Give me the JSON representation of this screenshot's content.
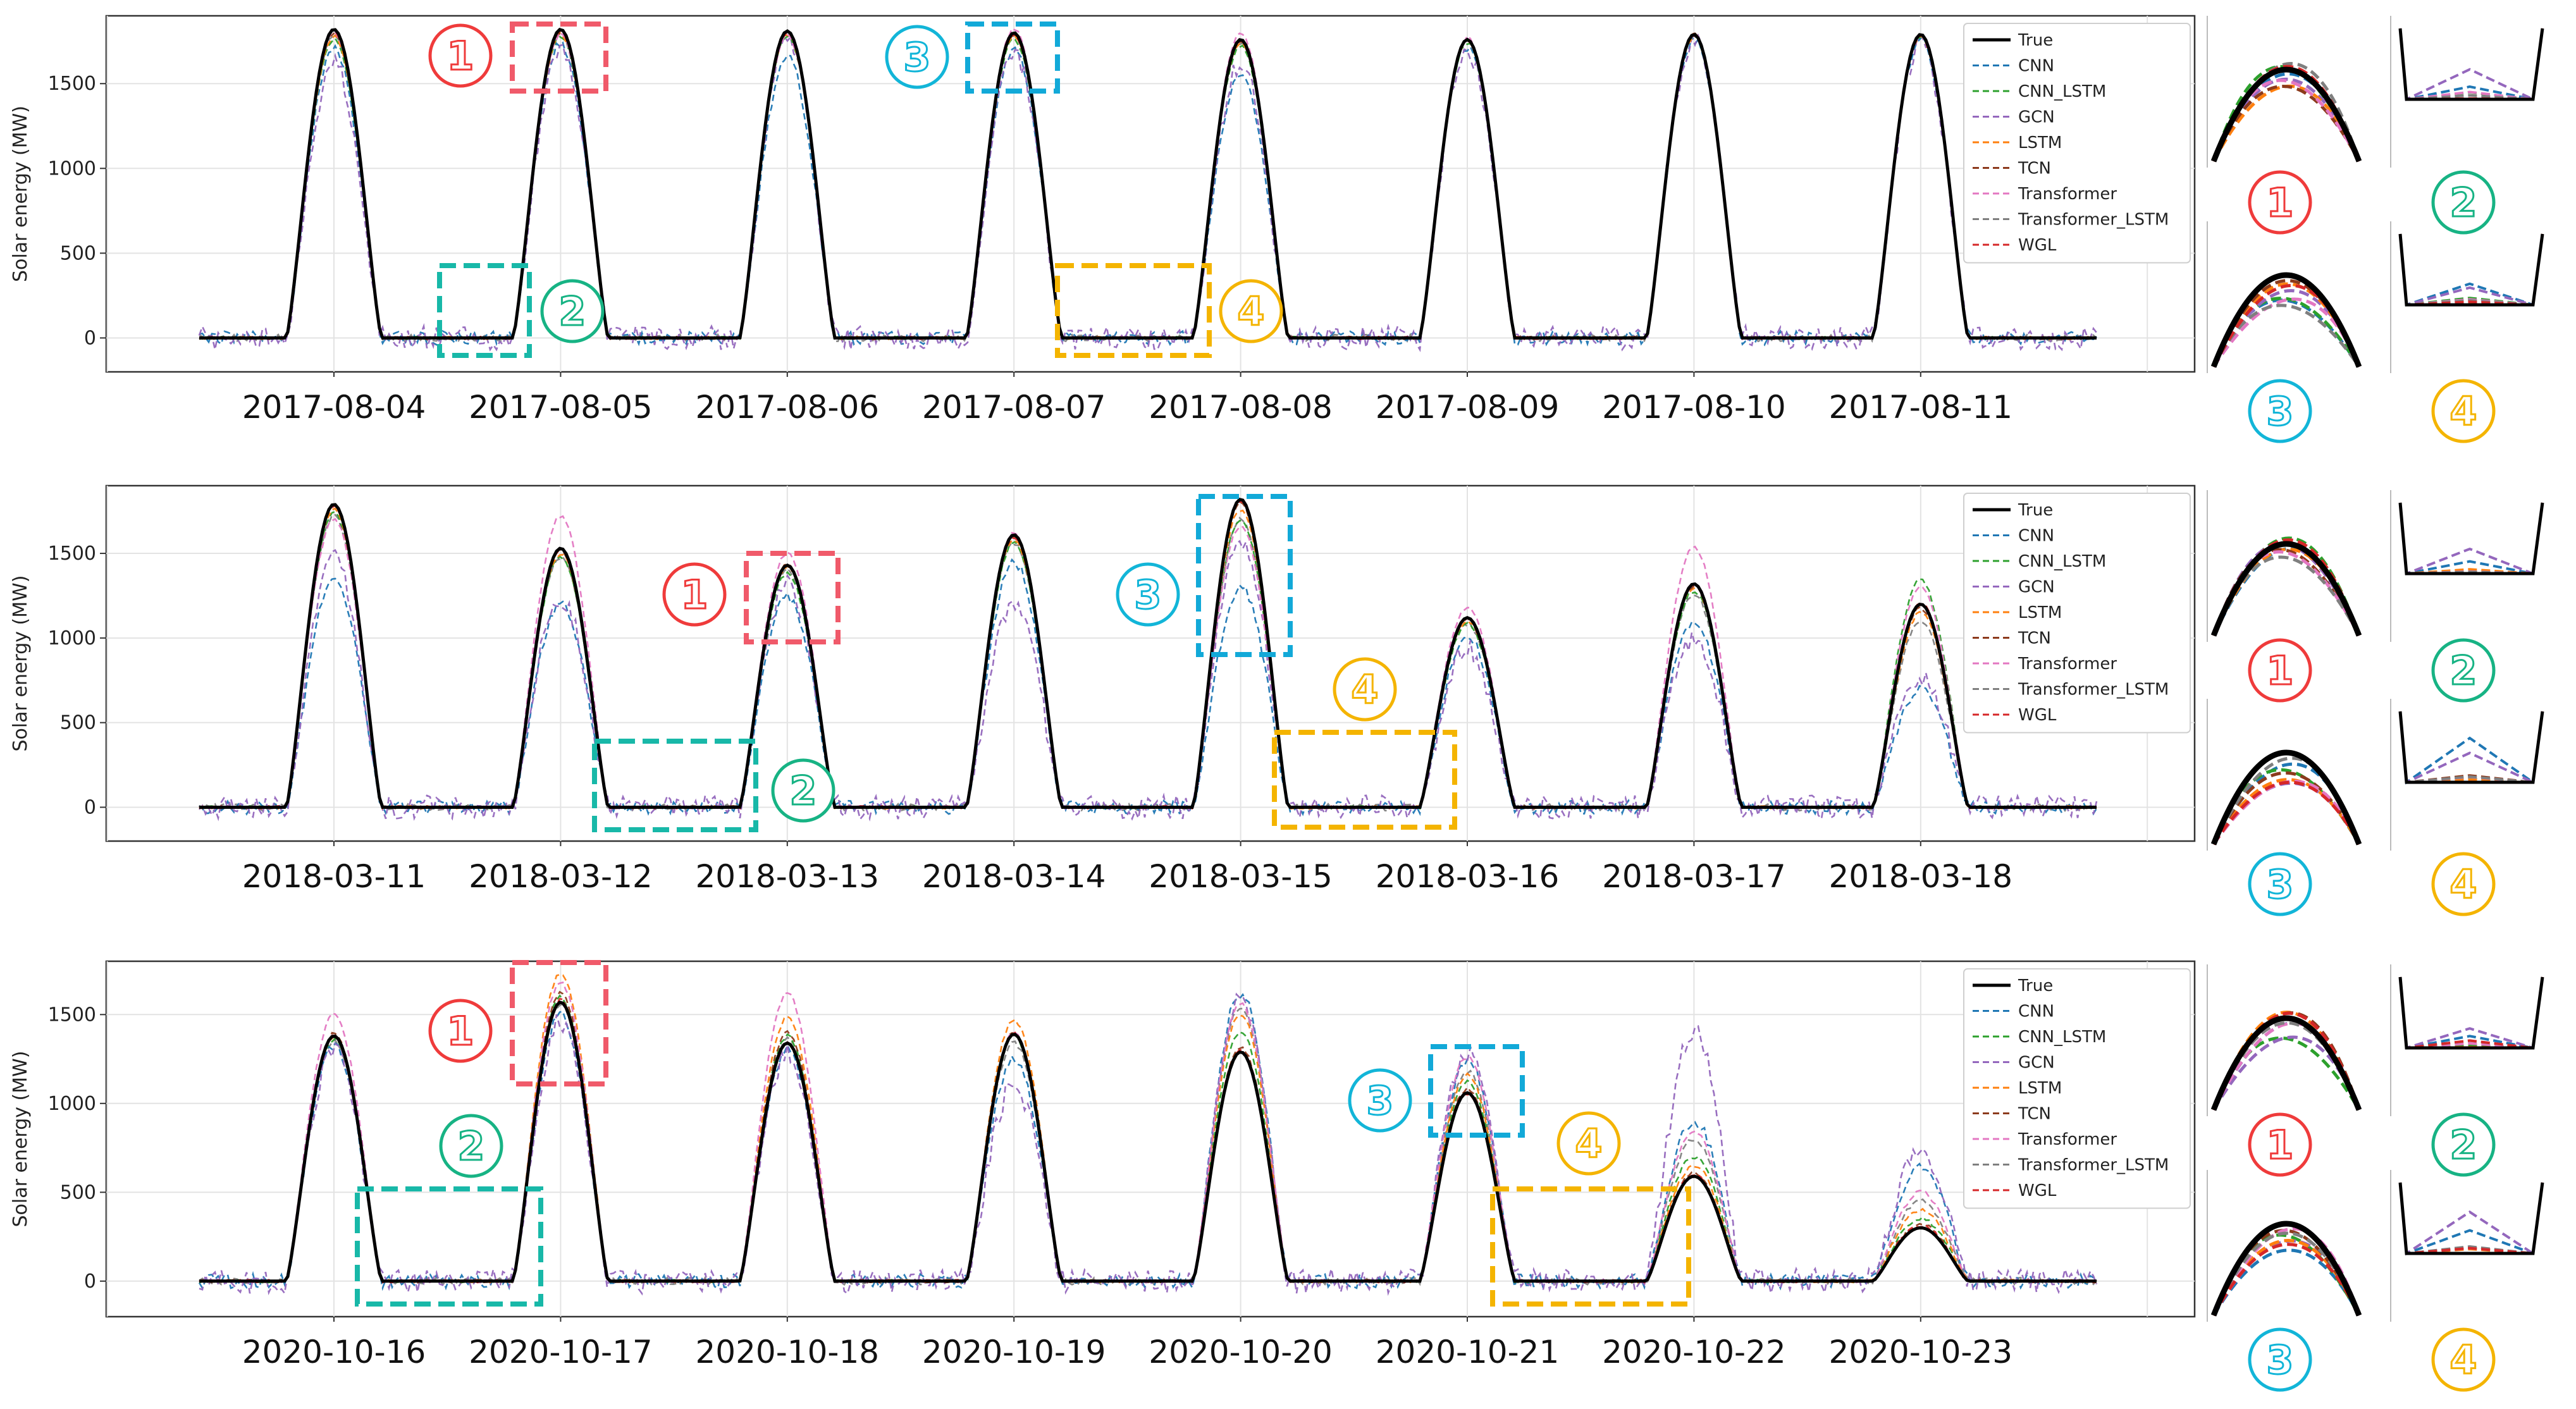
{
  "figure": {
    "ylabel": "Solar energy (MW)",
    "legend": [
      "True",
      "CNN",
      "CNN_LSTM",
      "GCN",
      "LSTM",
      "TCN",
      "Transformer",
      "Transformer_LSTM",
      "WGL"
    ],
    "colors": {
      "True": "#000000",
      "CNN": "#1f77b4",
      "CNN_LSTM": "#2ca02c",
      "GCN": "#9467bd",
      "LSTM": "#ff7f0e",
      "TCN": "#8c3a1c",
      "Transformer": "#e377c2",
      "Transformer_LSTM": "#7f7f7f",
      "WGL": "#d62728"
    },
    "marker_colors": {
      "1": "#ef3b3b",
      "2": "#17b384",
      "3": "#12b5d8",
      "4": "#f4b400"
    },
    "box_colors": {
      "1": "#f05a6a",
      "2": "#18b8a8",
      "3": "#12a9d8",
      "4": "#f4b400"
    },
    "marker_labels": [
      "1",
      "2",
      "3",
      "4"
    ]
  },
  "chart_data": [
    {
      "type": "line",
      "dates": [
        "2017-08-04",
        "2017-08-05",
        "2017-08-06",
        "2017-08-07",
        "2017-08-08",
        "2017-08-09",
        "2017-08-10",
        "2017-08-11"
      ],
      "yticks": [
        0,
        500,
        1000,
        1500
      ],
      "ylim": [
        -200,
        1900
      ],
      "ylabel": "Solar energy (MW)",
      "true_peaks": [
        1820,
        1820,
        1810,
        1800,
        1760,
        1760,
        1790,
        1790
      ],
      "model_peaks": {
        "CNN": [
          1700,
          1730,
          1650,
          1700,
          1560,
          1720,
          1760,
          1760
        ],
        "CNN_LSTM": [
          1760,
          1780,
          1780,
          1760,
          1720,
          1740,
          1780,
          1780
        ],
        "GCN": [
          1620,
          1680,
          1740,
          1680,
          1620,
          1680,
          1760,
          1740
        ],
        "LSTM": [
          1780,
          1790,
          1790,
          1780,
          1740,
          1750,
          1780,
          1780
        ],
        "TCN": [
          1800,
          1800,
          1800,
          1790,
          1750,
          1760,
          1790,
          1790
        ],
        "Transformer": [
          1800,
          1790,
          1780,
          1820,
          1800,
          1770,
          1790,
          1790
        ],
        "Transformer_LSTM": [
          1780,
          1790,
          1790,
          1780,
          1740,
          1760,
          1780,
          1780
        ],
        "WGL": [
          1810,
          1810,
          1800,
          1790,
          1760,
          1760,
          1790,
          1790
        ]
      }
    },
    {
      "type": "line",
      "dates": [
        "2018-03-11",
        "2018-03-12",
        "2018-03-13",
        "2018-03-14",
        "2018-03-15",
        "2018-03-16",
        "2018-03-17",
        "2018-03-18"
      ],
      "yticks": [
        0,
        500,
        1000,
        1500
      ],
      "ylim": [
        -200,
        1900
      ],
      "ylabel": "Solar energy (MW)",
      "true_peaks": [
        1790,
        1530,
        1430,
        1610,
        1820,
        1120,
        1320,
        1200
      ],
      "model_peaks": {
        "CNN": [
          1330,
          1200,
          1240,
          1450,
          1300,
          1000,
          1100,
          700
        ],
        "CNN_LSTM": [
          1740,
          1480,
          1380,
          1560,
          1700,
          1080,
          1280,
          1340
        ],
        "GCN": [
          1480,
          1240,
          1320,
          1200,
          1580,
          940,
          1000,
          780
        ],
        "LSTM": [
          1760,
          1500,
          1420,
          1580,
          1760,
          1100,
          1300,
          1150
        ],
        "TCN": [
          1780,
          1520,
          1430,
          1600,
          1800,
          1110,
          1310,
          1180
        ],
        "Transformer": [
          1700,
          1720,
          1500,
          1620,
          1660,
          1180,
          1540,
          1300
        ],
        "Transformer_LSTM": [
          1720,
          1480,
          1400,
          1560,
          1700,
          1080,
          1260,
          1100
        ],
        "WGL": [
          1780,
          1520,
          1430,
          1600,
          1810,
          1120,
          1320,
          1210
        ]
      }
    },
    {
      "type": "line",
      "dates": [
        "2020-10-16",
        "2020-10-17",
        "2020-10-18",
        "2020-10-19",
        "2020-10-20",
        "2020-10-21",
        "2020-10-22",
        "2020-10-23"
      ],
      "yticks": [
        0,
        500,
        1000,
        1500
      ],
      "ylim": [
        -200,
        1800
      ],
      "ylabel": "Solar energy (MW)",
      "true_peaks": [
        1380,
        1570,
        1340,
        1390,
        1290,
        1060,
        590,
        300
      ],
      "model_peaks": {
        "CNN": [
          1320,
          1500,
          1300,
          1250,
          1620,
          1240,
          900,
          650
        ],
        "CNN_LSTM": [
          1360,
          1600,
          1380,
          1380,
          1400,
          1120,
          700,
          350
        ],
        "GCN": [
          1300,
          1460,
          1280,
          1100,
          1600,
          1280,
          1400,
          720
        ],
        "LSTM": [
          1380,
          1730,
          1480,
          1470,
          1500,
          1160,
          650,
          400
        ],
        "TCN": [
          1390,
          1620,
          1400,
          1400,
          1320,
          1080,
          610,
          320
        ],
        "Transformer": [
          1500,
          1680,
          1620,
          1400,
          1560,
          1260,
          850,
          500
        ],
        "Transformer_LSTM": [
          1350,
          1560,
          1360,
          1340,
          1540,
          1180,
          800,
          450
        ],
        "WGL": [
          1380,
          1580,
          1340,
          1390,
          1300,
          1060,
          600,
          310
        ]
      }
    }
  ]
}
